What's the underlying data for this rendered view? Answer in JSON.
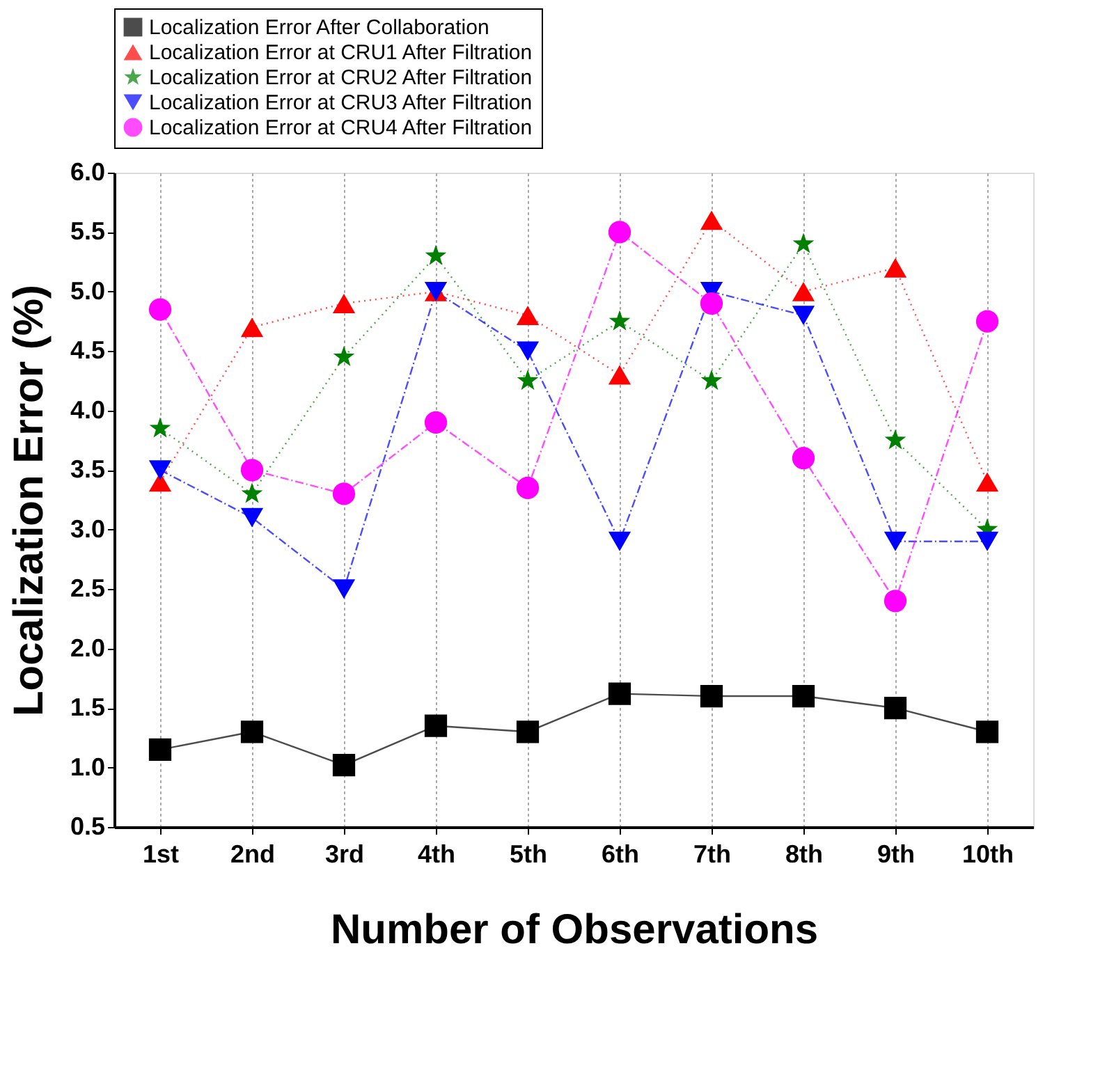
{
  "chart_data": {
    "type": "line",
    "xlabel": "Number of Observations",
    "ylabel": "Localization Error (%)",
    "categories": [
      "1st",
      "2nd",
      "3rd",
      "4th",
      "5th",
      "6th",
      "7th",
      "8th",
      "9th",
      "10th"
    ],
    "ylim": [
      0.5,
      6.0
    ],
    "yticks": [
      0.5,
      {
        "value": 1,
        "label": "1.0"
      },
      1.5,
      {
        "value": 2,
        "label": "2.0"
      },
      2.5,
      {
        "value": 3,
        "label": "3.0"
      },
      3.5,
      {
        "value": 4,
        "label": "4.0"
      },
      4.5,
      {
        "value": 5,
        "label": "5.0"
      },
      5.5,
      {
        "value": 6,
        "label": "6.0"
      }
    ],
    "grid": "x",
    "legend": "top",
    "series": [
      {
        "name": "Localization Error After Collaboration",
        "color": "#000000",
        "marker": "square",
        "line_style": "solid",
        "values": [
          1.15,
          1.3,
          1.02,
          1.35,
          1.3,
          1.62,
          1.6,
          1.6,
          1.5,
          1.3
        ]
      },
      {
        "name": "Localization Error at CRU1 After Filtration",
        "color": "#ff0000",
        "marker": "triangle",
        "line_style": "dotted",
        "values": [
          3.4,
          4.7,
          4.9,
          5.0,
          4.8,
          4.3,
          5.6,
          5.0,
          5.2,
          3.4
        ]
      },
      {
        "name": "Localization Error at CRU2 After Filtration",
        "color": "#008000",
        "marker": "star",
        "line_style": "dotted",
        "values": [
          3.85,
          3.3,
          4.45,
          5.3,
          4.25,
          4.75,
          4.25,
          5.4,
          3.75,
          3.0
        ]
      },
      {
        "name": "Localization Error at CRU3 After Filtration",
        "color": "#0000ff",
        "marker": "triangle-down",
        "line_style": "dashed",
        "values": [
          3.5,
          3.1,
          2.5,
          5.0,
          4.5,
          2.9,
          5.0,
          4.8,
          2.9,
          2.9
        ]
      },
      {
        "name": "Localization Error at CRU4 After Filtration",
        "color": "#ff00ff",
        "marker": "circle",
        "line_style": "dashed",
        "values": [
          4.85,
          3.5,
          3.3,
          3.9,
          3.35,
          5.5,
          4.9,
          3.6,
          2.4,
          4.75
        ]
      }
    ]
  }
}
